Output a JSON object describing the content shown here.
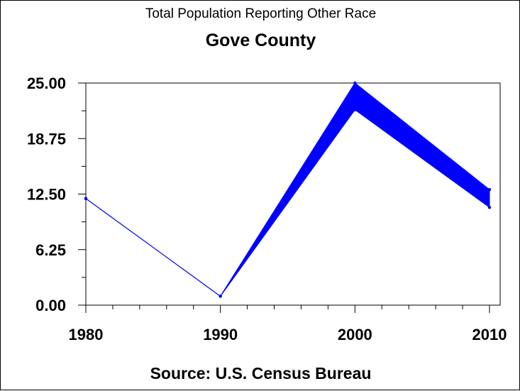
{
  "chart_data": {
    "type": "line",
    "subtitle": "Total Population Reporting Other Race",
    "title": "Gove County",
    "source": "Source: U.S. Census Bureau",
    "x": [
      1980,
      1990,
      2000,
      2010
    ],
    "x_tick_labels": [
      "1980",
      "1990",
      "2000",
      "2010"
    ],
    "y_tick_labels": [
      "0.00",
      "6.25",
      "12.50",
      "18.75",
      "25.00"
    ],
    "ylim": [
      0,
      25
    ],
    "xlim": [
      1980,
      2010
    ],
    "series": [
      {
        "values": [
          12,
          1,
          25,
          13
        ]
      },
      {
        "values": [
          12,
          1,
          22,
          11
        ]
      }
    ],
    "band_color": "#0000ff",
    "grid": false
  }
}
